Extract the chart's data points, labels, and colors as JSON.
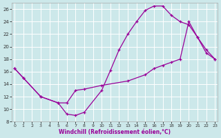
{
  "bg_color": "#cce8ea",
  "line_color": "#990099",
  "grid_color": "#b0d0d4",
  "xlim": [
    -0.3,
    23.3
  ],
  "ylim": [
    8,
    27
  ],
  "yticks": [
    8,
    10,
    12,
    14,
    16,
    18,
    20,
    22,
    24,
    26
  ],
  "xticks": [
    0,
    1,
    2,
    3,
    4,
    5,
    6,
    7,
    8,
    9,
    10,
    11,
    12,
    13,
    14,
    15,
    16,
    17,
    18,
    19,
    20,
    21,
    22,
    23
  ],
  "curve1_x": [
    0,
    1,
    3,
    5,
    6,
    7,
    8,
    10,
    11,
    12,
    13,
    14,
    15,
    16,
    17,
    18,
    19,
    20,
    21,
    22,
    23
  ],
  "curve1_y": [
    16.5,
    15.0,
    12.0,
    11.0,
    9.2,
    9.0,
    9.5,
    13.0,
    16.2,
    19.5,
    22.0,
    24.0,
    25.8,
    26.5,
    26.5,
    25.0,
    24.0,
    23.5,
    21.5,
    19.5,
    18.0
  ],
  "curve2_x": [
    0,
    1,
    3,
    5,
    6,
    7,
    8,
    10,
    13,
    15,
    16,
    17,
    18,
    19,
    20,
    21,
    22,
    23
  ],
  "curve2_y": [
    16.5,
    15.0,
    12.0,
    11.0,
    11.0,
    13.0,
    13.2,
    13.8,
    14.5,
    15.5,
    16.5,
    17.0,
    17.5,
    18.0,
    24.0,
    21.5,
    19.0,
    18.0
  ],
  "xlabel": "Windchill (Refroidissement éolien,°C)"
}
